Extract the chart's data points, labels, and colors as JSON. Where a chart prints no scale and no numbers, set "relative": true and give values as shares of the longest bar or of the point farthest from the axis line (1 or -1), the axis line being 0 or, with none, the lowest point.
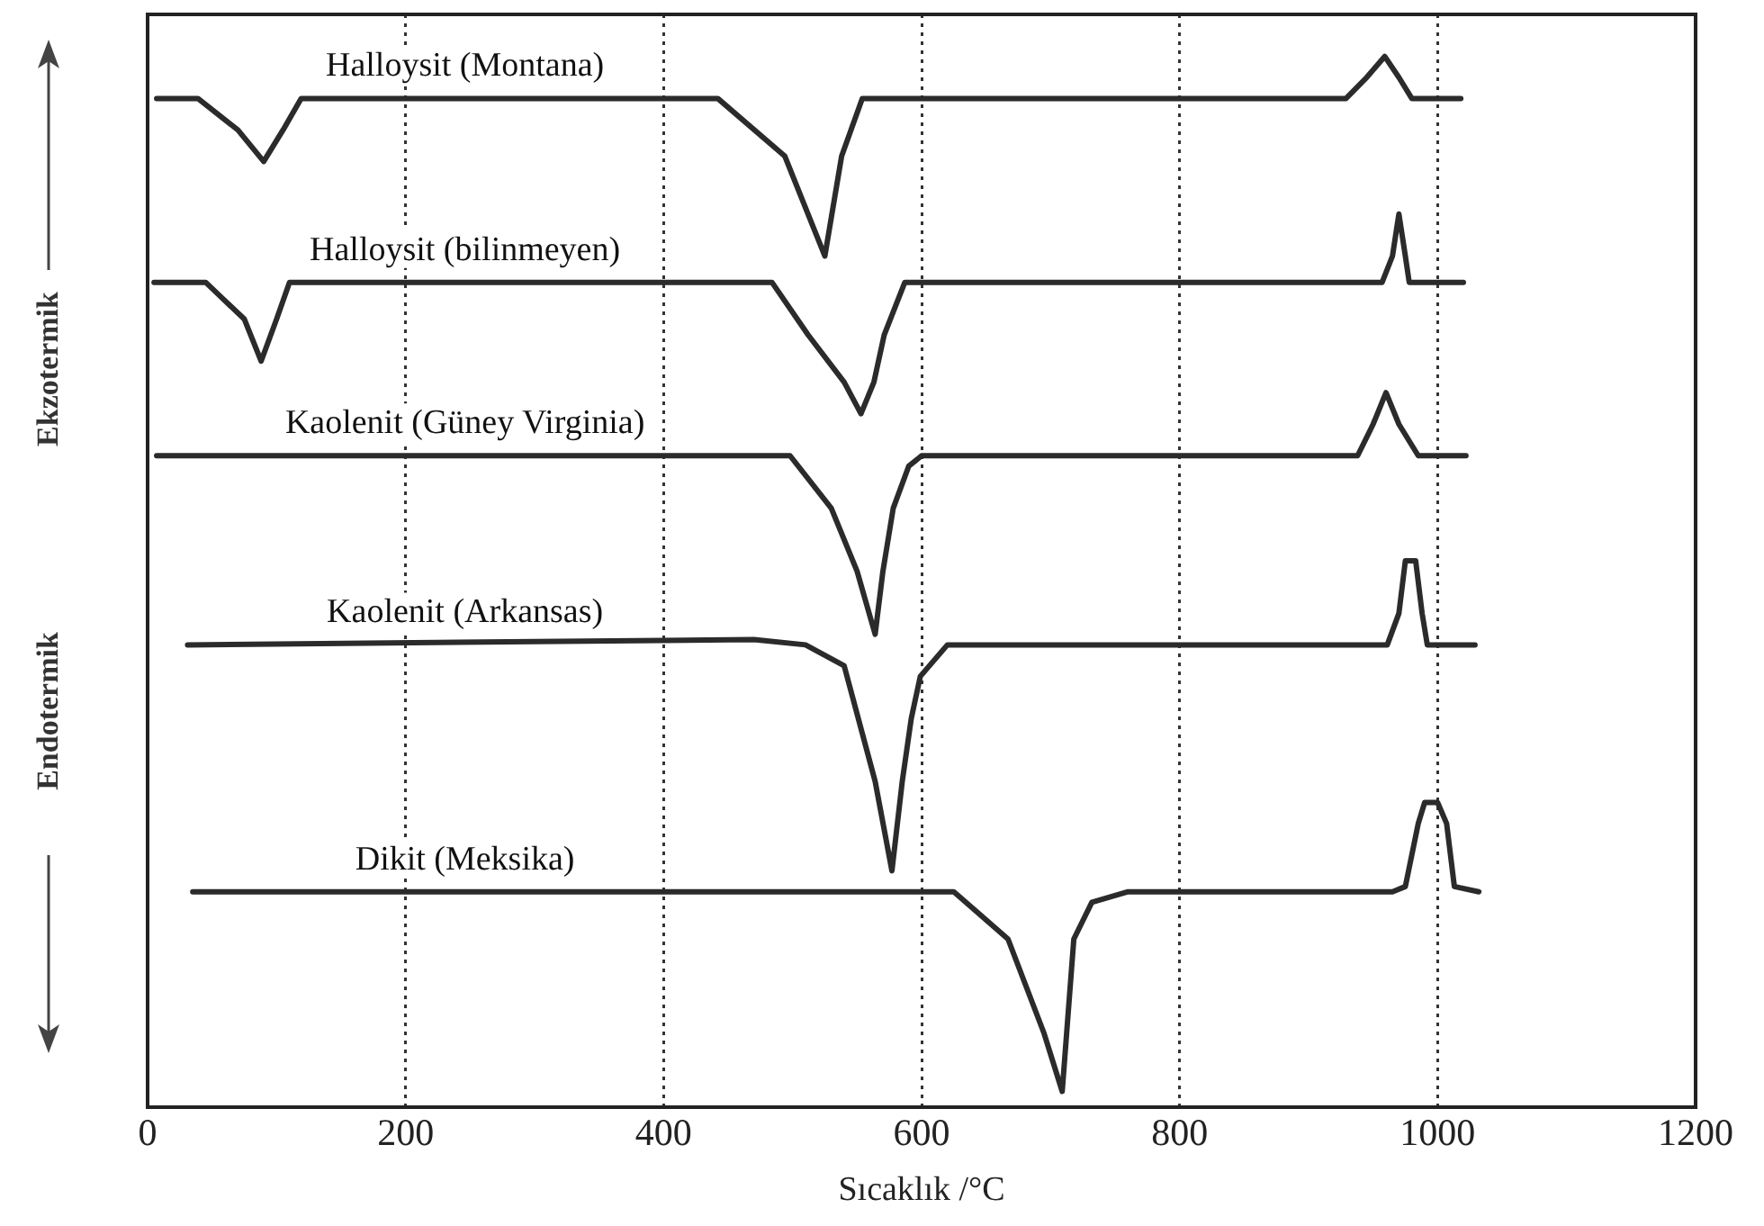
{
  "chart_data": {
    "type": "line",
    "xlabel": "Sıcaklık /°C",
    "relative": true,
    "xlim": [
      0,
      1200
    ],
    "xticks": [
      0,
      200,
      400,
      600,
      800,
      1000,
      1200
    ],
    "grid": "x",
    "legend": false,
    "marker": "none",
    "line_style": "solid",
    "annotations": [
      "Ekzotermik",
      "Endotermik"
    ],
    "series": [
      {
        "name": "Halloysit (Montana)",
        "color": "#2b2b2b",
        "x": [
          7,
          39,
          70,
          90,
          105,
          119,
          442,
          494,
          525,
          538,
          554,
          929,
          945,
          959,
          970,
          980,
          1018
        ],
        "values": [
          0.96,
          0.96,
          0.93,
          0.9,
          0.93,
          0.96,
          0.96,
          0.905,
          0.81,
          0.905,
          0.96,
          0.96,
          0.98,
          1,
          0.98,
          0.96,
          0.96
        ]
      },
      {
        "name": "Halloysit (bilinmeyen)",
        "color": "#2b2b2b",
        "x": [
          5,
          45,
          75,
          88,
          100,
          110,
          484,
          512,
          540,
          553,
          563,
          571,
          587,
          957,
          965,
          970,
          975,
          978,
          1020
        ],
        "values": [
          0.785,
          0.785,
          0.75,
          0.71,
          0.75,
          0.785,
          0.785,
          0.735,
          0.69,
          0.66,
          0.69,
          0.735,
          0.785,
          0.785,
          0.81,
          0.85,
          0.81,
          0.785,
          0.785
        ]
      },
      {
        "name": "Kaolenit (Güney Virginia)",
        "color": "#2b2b2b",
        "x": [
          7,
          498,
          530,
          550,
          564,
          570,
          578,
          590,
          600,
          938,
          950,
          960,
          970,
          985,
          1022
        ],
        "values": [
          0.62,
          0.62,
          0.57,
          0.51,
          0.45,
          0.51,
          0.57,
          0.61,
          0.62,
          0.62,
          0.65,
          0.68,
          0.65,
          0.62,
          0.62
        ]
      },
      {
        "name": "Kaolenit (Arkansas)",
        "color": "#2b2b2b",
        "x": [
          31,
          470,
          510,
          540,
          564,
          577,
          585,
          592,
          599,
          620,
          961,
          970,
          975,
          983,
          988,
          992,
          1029
        ],
        "values": [
          0.44,
          0.445,
          0.44,
          0.42,
          0.31,
          0.225,
          0.31,
          0.37,
          0.41,
          0.44,
          0.44,
          0.47,
          0.52,
          0.52,
          0.47,
          0.44,
          0.44
        ]
      },
      {
        "name": "Dikit (Meksika)",
        "color": "#2b2b2b",
        "x": [
          35,
          625,
          667,
          695,
          709,
          718,
          732,
          760,
          965,
          975,
          985,
          990,
          1000,
          1007,
          1013,
          1032
        ],
        "values": [
          0.205,
          0.205,
          0.16,
          0.07,
          0.015,
          0.16,
          0.195,
          0.205,
          0.205,
          0.21,
          0.27,
          0.29,
          0.29,
          0.27,
          0.21,
          0.205
        ]
      }
    ]
  }
}
